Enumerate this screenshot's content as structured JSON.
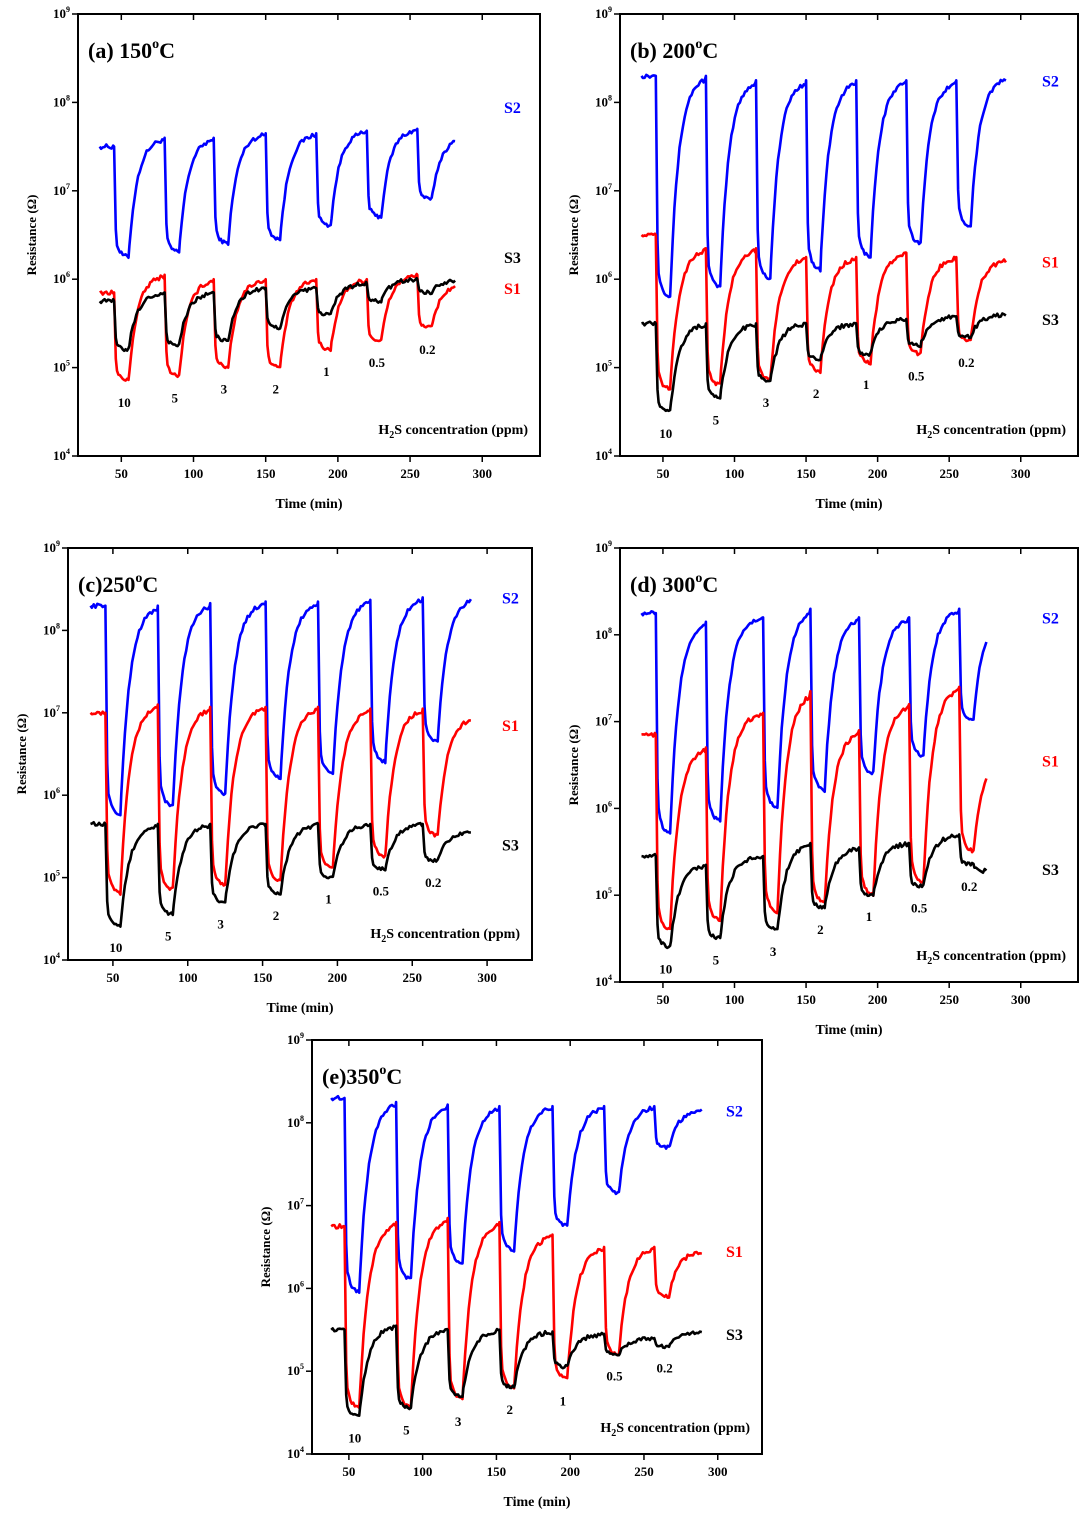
{
  "chart_data": [
    {
      "type": "line",
      "title": "(a) 150°C",
      "xlabel": "Time (min)",
      "ylabel": "Resistance (Ω)",
      "xlim": [
        20,
        340
      ],
      "ylog": [
        4,
        9
      ],
      "xticks": [
        50,
        100,
        150,
        200,
        250,
        300
      ],
      "note": "H2S concentration (ppm)",
      "pulse_starts": [
        45,
        80,
        114,
        150,
        185,
        220,
        255
      ],
      "pulse_len": 10,
      "end": 282,
      "start": 35,
      "concentrations": [
        "10",
        "5",
        "3",
        "2",
        "1",
        "0.5",
        "0.2"
      ],
      "series": [
        {
          "name": "S2",
          "color": "#0000ff",
          "base": [
            7.5,
            7.6,
            7.6,
            7.65,
            7.65,
            7.68,
            7.7,
            7.6
          ],
          "min": [
            6.25,
            6.3,
            6.4,
            6.45,
            6.6,
            6.7,
            6.9
          ]
        },
        {
          "name": "S1",
          "color": "#ff0000",
          "base": [
            5.85,
            6.05,
            6.0,
            6.0,
            6.0,
            6.0,
            6.05,
            5.95
          ],
          "min": [
            4.85,
            4.9,
            5.0,
            5.0,
            5.2,
            5.3,
            5.45
          ]
        },
        {
          "name": "S3",
          "color": "#000000",
          "base": [
            5.75,
            5.85,
            5.85,
            5.9,
            5.9,
            5.95,
            6.0,
            6.0
          ],
          "min": [
            5.2,
            5.25,
            5.3,
            5.45,
            5.6,
            5.75,
            5.85
          ]
        }
      ]
    },
    {
      "type": "line",
      "title": "(b) 200°C",
      "xlabel": "Time (min)",
      "ylabel": "Resistance (Ω)",
      "xlim": [
        20,
        340
      ],
      "ylog": [
        4,
        9
      ],
      "xticks": [
        50,
        100,
        150,
        200,
        250,
        300
      ],
      "note": "H2S concentration (ppm)",
      "pulse_starts": [
        45,
        80,
        115,
        150,
        185,
        220,
        255
      ],
      "pulse_len": 10,
      "end": 290,
      "start": 35,
      "concentrations": [
        "10",
        "5",
        "3",
        "2",
        "1",
        "0.5",
        "0.2"
      ],
      "series": [
        {
          "name": "S2",
          "color": "#0000ff",
          "base": [
            8.3,
            8.3,
            8.25,
            8.25,
            8.25,
            8.25,
            8.25,
            8.28
          ],
          "min": [
            5.8,
            5.9,
            6.0,
            6.1,
            6.25,
            6.4,
            6.6
          ]
        },
        {
          "name": "S1",
          "color": "#ff0000",
          "base": [
            6.5,
            6.35,
            6.35,
            6.25,
            6.25,
            6.3,
            6.25,
            6.22
          ],
          "min": [
            4.75,
            4.8,
            4.85,
            4.95,
            5.05,
            5.15,
            5.3
          ]
        },
        {
          "name": "S3",
          "color": "#000000",
          "base": [
            5.5,
            5.5,
            5.5,
            5.5,
            5.5,
            5.55,
            5.58,
            5.6
          ],
          "min": [
            4.5,
            4.65,
            4.85,
            5.1,
            5.15,
            5.25,
            5.35
          ]
        }
      ]
    },
    {
      "type": "line",
      "title": "(c)250°C",
      "xlabel": "Time (min)",
      "ylabel": "Resistance (Ω)",
      "xlim": [
        20,
        330
      ],
      "ylog": [
        4,
        9
      ],
      "xticks": [
        50,
        100,
        150,
        200,
        250,
        300
      ],
      "note": "H2S concentration (ppm)",
      "pulse_starts": [
        45,
        80,
        115,
        152,
        187,
        222,
        257
      ],
      "pulse_len": 10,
      "end": 290,
      "start": 35,
      "concentrations": [
        "10",
        "5",
        "3",
        "2",
        "1",
        "0.5",
        "0.2"
      ],
      "series": [
        {
          "name": "S2",
          "color": "#0000ff",
          "base": [
            8.3,
            8.3,
            8.33,
            8.35,
            8.35,
            8.37,
            8.4,
            8.4
          ],
          "min": [
            5.75,
            5.85,
            6.0,
            6.2,
            6.25,
            6.4,
            6.65
          ]
        },
        {
          "name": "S1",
          "color": "#ff0000",
          "base": [
            7.0,
            7.1,
            7.07,
            7.07,
            7.07,
            7.05,
            7.05,
            6.95
          ],
          "min": [
            4.8,
            4.85,
            4.9,
            4.95,
            5.1,
            5.25,
            5.5
          ]
        },
        {
          "name": "S3",
          "color": "#000000",
          "base": [
            5.65,
            5.65,
            5.65,
            5.65,
            5.65,
            5.65,
            5.65,
            5.55
          ],
          "min": [
            4.4,
            4.55,
            4.7,
            4.8,
            5.0,
            5.1,
            5.2
          ]
        }
      ]
    },
    {
      "type": "line",
      "title": "(d) 300°C",
      "xlabel": "Time (min)",
      "ylabel": "Resistance (Ω)",
      "xlim": [
        20,
        340
      ],
      "ylog": [
        4,
        9
      ],
      "xticks": [
        50,
        100,
        150,
        200,
        250,
        300
      ],
      "note": "H2S concentration (ppm)",
      "pulse_starts": [
        45,
        80,
        120,
        153,
        187,
        222,
        257
      ],
      "pulse_len": 10,
      "end": 277,
      "start": 35,
      "concentrations": [
        "10",
        "5",
        "3",
        "2",
        "1",
        "0.5",
        "0.2"
      ],
      "series": [
        {
          "name": "S2",
          "color": "#0000ff",
          "base": [
            8.25,
            8.15,
            8.2,
            8.3,
            8.2,
            8.2,
            8.3,
            8.2
          ],
          "min": [
            5.7,
            5.85,
            6.0,
            6.2,
            6.4,
            6.6,
            7.0
          ]
        },
        {
          "name": "S1",
          "color": "#ff0000",
          "base": [
            6.85,
            6.7,
            7.1,
            7.35,
            6.9,
            7.2,
            7.4,
            6.6
          ],
          "min": [
            4.6,
            4.7,
            4.8,
            4.9,
            5.0,
            5.15,
            5.5
          ]
        },
        {
          "name": "S3",
          "color": "#000000",
          "base": [
            5.45,
            5.35,
            5.45,
            5.6,
            5.55,
            5.6,
            5.7,
            5.25
          ],
          "min": [
            4.4,
            4.5,
            4.6,
            4.85,
            5.0,
            5.1,
            5.35
          ]
        }
      ]
    },
    {
      "type": "line",
      "title": "(e)350°C",
      "xlabel": "Time (min)",
      "ylabel": "Resistance (Ω)",
      "xlim": [
        25,
        330
      ],
      "ylog": [
        4,
        9
      ],
      "xticks": [
        50,
        100,
        150,
        200,
        250,
        300
      ],
      "note": "H2S concentration (ppm)",
      "pulse_starts": [
        47,
        82,
        117,
        152,
        188,
        223,
        257
      ],
      "pulse_len": 10,
      "end": 290,
      "start": 38,
      "concentrations": [
        "10",
        "5",
        "3",
        "2",
        "1",
        "0.5",
        "0.2"
      ],
      "series": [
        {
          "name": "S2",
          "color": "#0000ff",
          "base": [
            8.3,
            8.25,
            8.22,
            8.2,
            8.2,
            8.2,
            8.2,
            8.15
          ],
          "min": [
            5.95,
            6.1,
            6.3,
            6.45,
            6.75,
            7.15,
            7.7
          ]
        },
        {
          "name": "S1",
          "color": "#ff0000",
          "base": [
            6.75,
            6.8,
            6.85,
            6.8,
            6.65,
            6.5,
            6.5,
            6.45
          ],
          "min": [
            4.55,
            4.55,
            4.65,
            4.8,
            4.9,
            5.2,
            5.9
          ]
        },
        {
          "name": "S3",
          "color": "#000000",
          "base": [
            5.5,
            5.55,
            5.5,
            5.5,
            5.48,
            5.45,
            5.4,
            5.48
          ],
          "min": [
            4.45,
            4.55,
            4.7,
            4.8,
            5.05,
            5.2,
            5.3
          ]
        }
      ]
    }
  ]
}
